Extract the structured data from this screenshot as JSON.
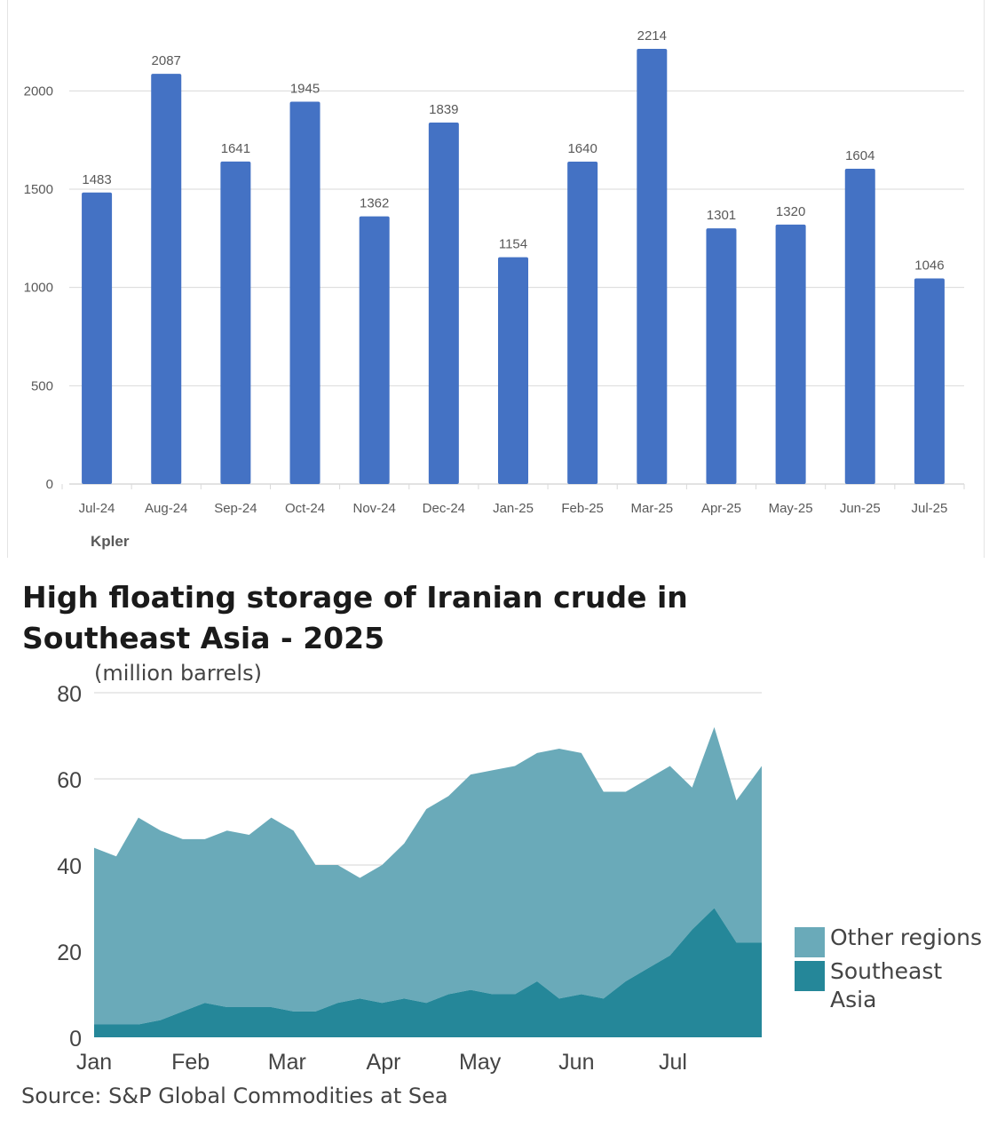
{
  "chart_data": [
    {
      "type": "bar",
      "categories": [
        "Jul-24",
        "Aug-24",
        "Sep-24",
        "Oct-24",
        "Nov-24",
        "Dec-24",
        "Jan-25",
        "Feb-25",
        "Mar-25",
        "Apr-25",
        "May-25",
        "Jun-25",
        "Jul-25"
      ],
      "values": [
        1483,
        2087,
        1641,
        1945,
        1362,
        1839,
        1154,
        1640,
        2214,
        1301,
        1320,
        1604,
        1046
      ],
      "data_labels": [
        "1483",
        "2087",
        "1641",
        "1945",
        "1362",
        "1839",
        "1154",
        "1640",
        "2214",
        "1301",
        "1320",
        "1604",
        "1046"
      ],
      "ylim": [
        0,
        2214
      ],
      "yticks": [
        0,
        500,
        1000,
        1500,
        2000
      ],
      "ytick_labels": [
        "0",
        "500",
        "1000",
        "1500",
        "2000"
      ],
      "grid": true,
      "source": "Kpler",
      "colors": {
        "bar": "#4472c4",
        "grid": "#d9d9d9",
        "text": "#595959"
      }
    },
    {
      "type": "area",
      "stacked": true,
      "title": "High floating storage of Iranian crude in Southeast Asia - 2025",
      "ylabel": "(million barrels)",
      "ylim": [
        0,
        80
      ],
      "yticks": [
        0,
        20,
        40,
        60,
        80
      ],
      "ytick_labels": [
        "0",
        "20",
        "40",
        "60",
        "80"
      ],
      "x_ticks": [
        "Jan",
        "Feb",
        "Mar",
        "Apr",
        "May",
        "Jun",
        "Jul"
      ],
      "grid": true,
      "legend_position": "right",
      "source": "Source: S&P Global Commodities at Sea",
      "series": [
        {
          "name": "Southeast Asia",
          "color": "#258799",
          "x": [
            "2025-01-01",
            "2025-01-08",
            "2025-01-15",
            "2025-01-22",
            "2025-01-29",
            "2025-02-05",
            "2025-02-12",
            "2025-02-19",
            "2025-02-26",
            "2025-03-05",
            "2025-03-12",
            "2025-03-19",
            "2025-03-26",
            "2025-04-02",
            "2025-04-09",
            "2025-04-16",
            "2025-04-23",
            "2025-04-30",
            "2025-05-07",
            "2025-05-14",
            "2025-05-21",
            "2025-05-28",
            "2025-06-04",
            "2025-06-11",
            "2025-06-18",
            "2025-06-25",
            "2025-07-02",
            "2025-07-09",
            "2025-07-16",
            "2025-07-23",
            "2025-07-31"
          ],
          "values": [
            3,
            3,
            3,
            4,
            6,
            8,
            7,
            7,
            7,
            6,
            6,
            8,
            9,
            8,
            9,
            8,
            10,
            11,
            10,
            10,
            13,
            9,
            10,
            9,
            13,
            16,
            19,
            25,
            30,
            22,
            22
          ]
        },
        {
          "name": "Other regions",
          "color": "#6aaab9",
          "x": [
            "2025-01-01",
            "2025-01-08",
            "2025-01-15",
            "2025-01-22",
            "2025-01-29",
            "2025-02-05",
            "2025-02-12",
            "2025-02-19",
            "2025-02-26",
            "2025-03-05",
            "2025-03-12",
            "2025-03-19",
            "2025-03-26",
            "2025-04-02",
            "2025-04-09",
            "2025-04-16",
            "2025-04-23",
            "2025-04-30",
            "2025-05-07",
            "2025-05-14",
            "2025-05-21",
            "2025-05-28",
            "2025-06-04",
            "2025-06-11",
            "2025-06-18",
            "2025-06-25",
            "2025-07-02",
            "2025-07-09",
            "2025-07-16",
            "2025-07-23",
            "2025-07-31"
          ],
          "values": [
            41,
            39,
            48,
            44,
            40,
            38,
            41,
            40,
            44,
            42,
            34,
            32,
            28,
            32,
            36,
            45,
            46,
            50,
            52,
            53,
            53,
            58,
            56,
            48,
            44,
            44,
            44,
            33,
            42,
            33,
            41
          ]
        }
      ]
    }
  ]
}
